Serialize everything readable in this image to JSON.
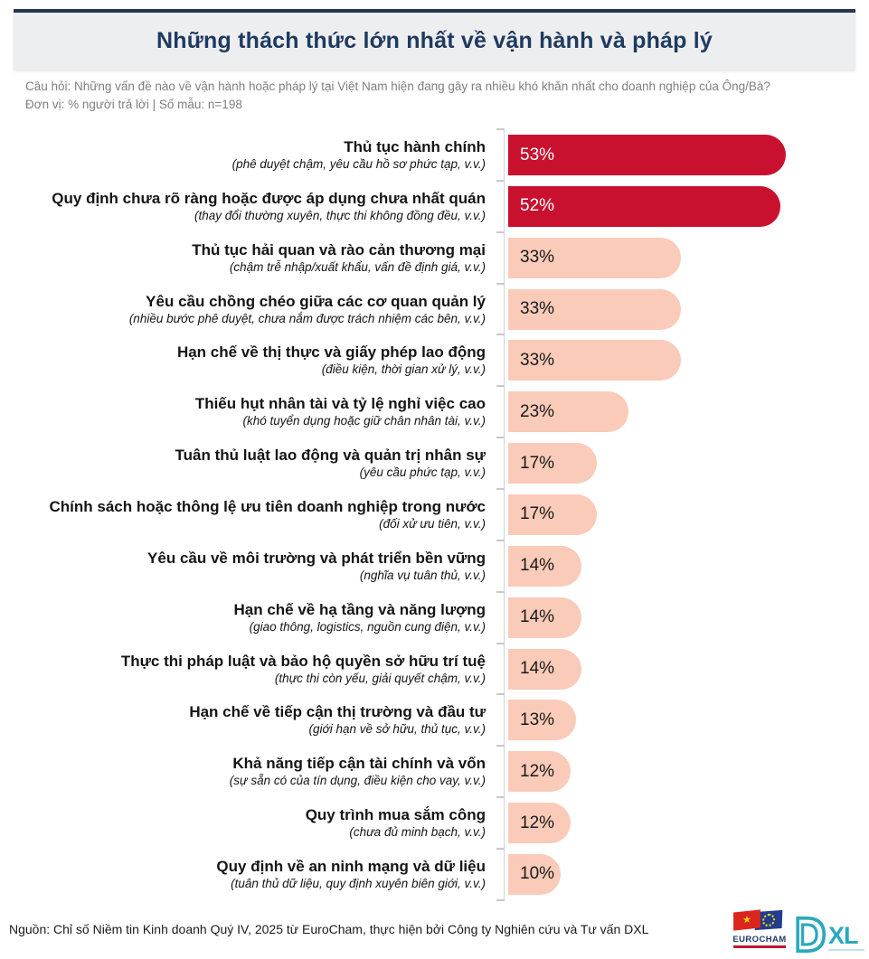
{
  "header": {
    "title": "Những thách thức lớn nhất về vận hành và pháp lý"
  },
  "meta": {
    "question": "Câu hỏi: Những vấn đề nào về vận hành hoặc pháp lý tại Việt Nam hiện đang gây ra nhiều khó khăn nhất cho doanh nghiệp của Ông/Bà?",
    "unit_sample": "Đơn vị: % người trả lời | Số mẫu: n=198"
  },
  "chart_data": {
    "type": "bar",
    "orientation": "horizontal",
    "title": "Những thách thức lớn nhất về vận hành và pháp lý",
    "value_unit": "%",
    "xlim": [
      0,
      55
    ],
    "grid": false,
    "legend": "none",
    "highlight_indices": [
      0,
      1
    ],
    "highlight_color": "#C9112F",
    "base_color": "#FACBB8",
    "highlight_text_color": "#FFFFFF",
    "base_text_color": "#1A1A1A",
    "categories": [
      "Thủ tục hành chính",
      "Quy định chưa rõ ràng hoặc được áp dụng chưa nhất quán",
      "Thủ tục hải quan và rào cản thương mại",
      "Yêu cầu chồng chéo giữa các cơ quan quản lý",
      "Hạn chế về thị thực và giấy phép lao động",
      "Thiếu hụt nhân tài và tỷ lệ nghỉ việc cao",
      "Tuân thủ luật lao động và quản trị nhân sự",
      "Chính sách hoặc thông lệ ưu tiên doanh nghiệp trong nước",
      "Yêu cầu về môi trường và phát triển bền vững",
      "Hạn chế về hạ tầng và năng lượng",
      "Thực thi pháp luật và bảo hộ quyền sở hữu trí tuệ",
      "Hạn chế về tiếp cận thị trường và đầu tư",
      "Khả năng tiếp cận tài chính và vốn",
      "Quy trình mua sắm công",
      "Quy định về an ninh mạng và dữ liệu"
    ],
    "sublabels": [
      "(phê duyệt chậm, yêu cầu hồ sơ phức tạp, v.v.)",
      "(thay đổi thường xuyên, thực thi không đồng đều, v.v.)",
      "(chậm trễ nhập/xuất khẩu, vấn đề định giá, v.v.)",
      "(nhiều bước phê duyệt, chưa nắm được trách nhiệm các bên, v.v.)",
      "(điều kiện, thời gian xử lý, v.v.)",
      "(khó tuyển dụng hoặc giữ chân nhân tài, v.v.)",
      "(yêu cầu phức tạp, v.v.)",
      "(đối xử ưu tiên, v.v.)",
      "(nghĩa vụ tuân thủ, v.v.)",
      "(giao thông, logistics, nguồn cung điện, v.v.)",
      "(thực thi còn yếu, giải quyết chậm, v.v.)",
      "(giới hạn về sở hữu, thủ tục, v.v.)",
      "(sự sẵn có của tín dụng, điều kiện cho vay, v.v.)",
      "(chưa đủ minh bạch, v.v.)",
      "(tuân thủ dữ liệu, quy định xuyên biên giới, v.v.)"
    ],
    "values": [
      53,
      52,
      33,
      33,
      33,
      23,
      17,
      17,
      14,
      14,
      14,
      13,
      12,
      12,
      10
    ]
  },
  "footer": {
    "source": "Nguồn: Chỉ số Niềm tin Kinh doanh Quý IV, 2025 từ EuroCham, thực hiện bởi Công ty Nghiên cứu và Tư vấn DXL",
    "logos": {
      "eurocham_label": "EUROCHAM",
      "dxl_d_label": "D",
      "dxl_xl_label": "XL"
    }
  }
}
